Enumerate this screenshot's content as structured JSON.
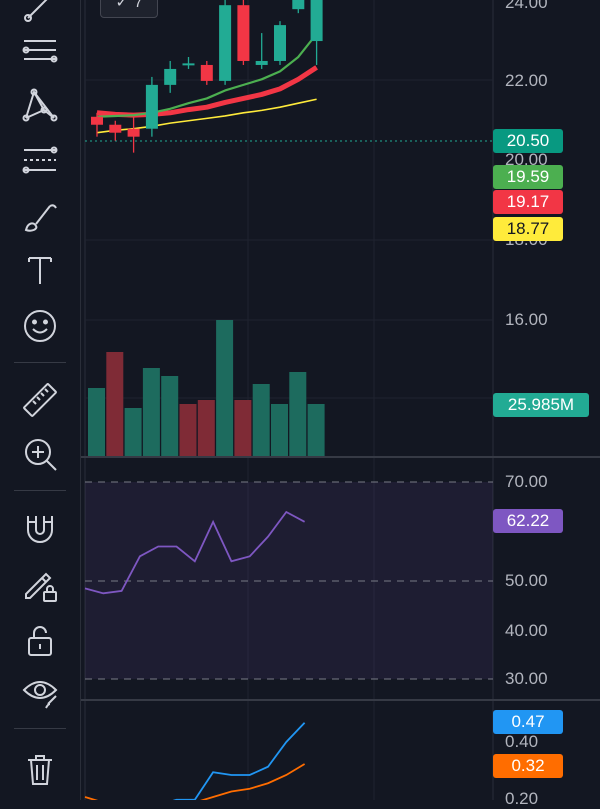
{
  "toolbar": {
    "tools": [
      {
        "name": "trend-line-tool-icon"
      },
      {
        "name": "parallel-channel-tool-icon"
      },
      {
        "name": "xabcd-pattern-tool-icon"
      },
      {
        "name": "fib-retracement-tool-icon"
      },
      {
        "name": "brush-tool-icon"
      },
      {
        "name": "text-tool-icon"
      },
      {
        "name": "emoji-tool-icon"
      },
      {
        "name": "ruler-tool-icon"
      },
      {
        "name": "zoom-in-tool-icon"
      },
      {
        "name": "magnet-tool-icon"
      },
      {
        "name": "lock-drawing-tool-icon"
      },
      {
        "name": "unlock-icon"
      },
      {
        "name": "eye-visibility-icon"
      },
      {
        "name": "trash-icon"
      }
    ]
  },
  "header": {
    "badge_label": "7"
  },
  "price_axis": {
    "labels": [
      "24.00",
      "22.00",
      "20.00",
      "18.00",
      "16.00"
    ],
    "tags": [
      {
        "label": "20.50",
        "bg": "#089981",
        "fg": "#ffffff"
      },
      {
        "label": "19.59",
        "bg": "#4caf50",
        "fg": "#ffffff"
      },
      {
        "label": "19.17",
        "bg": "#f23645",
        "fg": "#ffffff"
      },
      {
        "label": "18.77",
        "bg": "#ffeb3b",
        "fg": "#131722"
      }
    ]
  },
  "volume": {
    "tag": {
      "label": "25.985M",
      "bg": "#22ab94",
      "fg": "#ffffff"
    }
  },
  "rsi": {
    "labels": [
      "70.00",
      "50.00",
      "40.00",
      "30.00"
    ],
    "tag": {
      "label": "62.22",
      "bg": "#7e57c2",
      "fg": "#ffffff"
    },
    "color": "#7e57c2",
    "values": [
      48.5,
      47.5,
      48,
      55,
      57,
      57,
      54,
      62,
      54,
      55,
      59,
      64,
      62
    ]
  },
  "macd": {
    "labels": [
      "0.40",
      "0.20"
    ],
    "tags": [
      {
        "label": "0.47",
        "bg": "#2196f3",
        "fg": "#ffffff"
      },
      {
        "label": "0.32",
        "bg": "#ff6d00",
        "fg": "#ffffff"
      }
    ]
  },
  "colors": {
    "up": "#22ab94",
    "down": "#f23645",
    "up_volume": "#1d6b5e",
    "down_volume": "#7f2b36",
    "ma_fast": "#4caf50",
    "ma_mid": "#f23645",
    "ma_slow": "#ffeb3b",
    "drawing": "#ffeb3b"
  },
  "chart_data": {
    "type": "candlestick",
    "candles": [
      {
        "o": 18.55,
        "h": 18.6,
        "l": 18.3,
        "c": 18.45
      },
      {
        "o": 18.45,
        "h": 18.5,
        "l": 18.25,
        "c": 18.35
      },
      {
        "o": 18.4,
        "h": 18.55,
        "l": 18.1,
        "c": 18.3
      },
      {
        "o": 18.4,
        "h": 19.05,
        "l": 18.3,
        "c": 18.95
      },
      {
        "o": 18.95,
        "h": 19.25,
        "l": 18.85,
        "c": 19.15
      },
      {
        "o": 19.2,
        "h": 19.3,
        "l": 19.15,
        "c": 19.22
      },
      {
        "o": 19.2,
        "h": 19.25,
        "l": 18.95,
        "c": 19.0
      },
      {
        "o": 19.0,
        "h": 20.1,
        "l": 18.95,
        "c": 19.95
      },
      {
        "o": 19.95,
        "h": 20.05,
        "l": 19.2,
        "c": 19.25
      },
      {
        "o": 19.2,
        "h": 19.6,
        "l": 19.15,
        "c": 19.25
      },
      {
        "o": 19.25,
        "h": 19.75,
        "l": 19.2,
        "c": 19.7
      },
      {
        "o": 19.9,
        "h": 20.75,
        "l": 19.85,
        "c": 20.55
      },
      {
        "o": 19.5,
        "h": 20.7,
        "l": 19.2,
        "c": 20.5
      }
    ],
    "volume": [
      {
        "v": 17,
        "dir": "up"
      },
      {
        "v": 26,
        "dir": "down"
      },
      {
        "v": 12,
        "dir": "up"
      },
      {
        "v": 22,
        "dir": "up"
      },
      {
        "v": 20,
        "dir": "up"
      },
      {
        "v": 13,
        "dir": "down"
      },
      {
        "v": 14,
        "dir": "down"
      },
      {
        "v": 34,
        "dir": "up"
      },
      {
        "v": 14,
        "dir": "down"
      },
      {
        "v": 18,
        "dir": "up"
      },
      {
        "v": 13,
        "dir": "up"
      },
      {
        "v": 21,
        "dir": "up"
      },
      {
        "v": 13,
        "dir": "up"
      }
    ],
    "ma_fast": [
      18.55,
      18.56,
      18.57,
      18.6,
      18.65,
      18.72,
      18.78,
      18.88,
      18.95,
      19.02,
      19.12,
      19.3,
      19.59
    ],
    "ma_mid": [
      18.6,
      18.58,
      18.57,
      18.58,
      18.6,
      18.64,
      18.67,
      18.73,
      18.78,
      18.83,
      18.9,
      19.02,
      19.17
    ],
    "ma_slow": [
      18.35,
      18.38,
      18.4,
      18.43,
      18.47,
      18.5,
      18.53,
      18.56,
      18.6,
      18.63,
      18.67,
      18.72,
      18.77
    ],
    "macd_blue": [
      0.18,
      0.17,
      0.16,
      0.15,
      0.17,
      0.19,
      0.19,
      0.29,
      0.28,
      0.28,
      0.31,
      0.4,
      0.47
    ],
    "macd_orange": [
      0.2,
      0.18,
      0.17,
      0.16,
      0.16,
      0.17,
      0.18,
      0.2,
      0.22,
      0.23,
      0.25,
      0.28,
      0.32
    ],
    "drawing": [
      {
        "price": 20.75
      },
      {
        "price": 22.93
      },
      {
        "price": 22.08
      }
    ]
  }
}
